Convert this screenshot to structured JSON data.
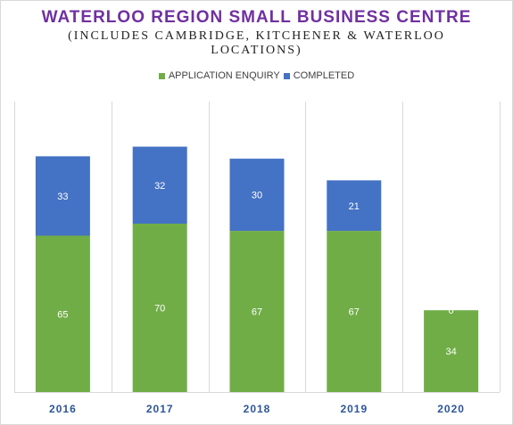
{
  "chart_data": {
    "type": "bar",
    "stacked": true,
    "title": "WATERLOO REGION SMALL BUSINESS CENTRE",
    "subtitle": "(INCLUDES CAMBRIDGE, KITCHENER & WATERLOO LOCATIONS)",
    "categories": [
      "2016",
      "2017",
      "2018",
      "2019",
      "2020"
    ],
    "series": [
      {
        "name": "APPLICATION ENQUIRY",
        "color": "#70ad47",
        "values": [
          65,
          70,
          67,
          67,
          34
        ]
      },
      {
        "name": "COMPLETED",
        "color": "#4472c4",
        "values": [
          33,
          32,
          30,
          21,
          0
        ]
      }
    ],
    "legend_position": "top",
    "grid": "vertical category separators",
    "ylim": [
      0,
      120
    ]
  }
}
